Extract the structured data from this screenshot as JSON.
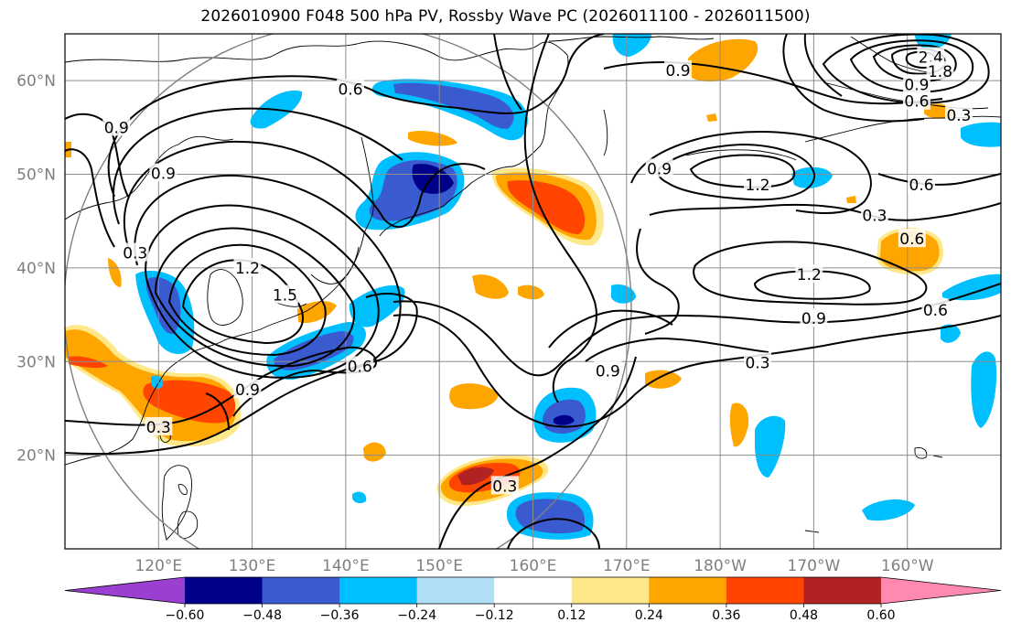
{
  "figure": {
    "title": "2026010900 F048 500 hPa PV, Rossby Wave PC (2026011100 - 2026011500)"
  },
  "axes": {
    "lat_labels": [
      "60°N",
      "50°N",
      "40°N",
      "30°N",
      "20°N"
    ],
    "lon_labels": [
      "120°E",
      "130°E",
      "140°E",
      "150°E",
      "160°E",
      "170°E",
      "180°W",
      "170°W",
      "160°W"
    ]
  },
  "colorbar": {
    "tick_labels": [
      "−0.60",
      "−0.48",
      "−0.36",
      "−0.24",
      "−0.12",
      "0.12",
      "0.24",
      "0.36",
      "0.48",
      "0.60"
    ],
    "colors": [
      "#9a3fd0",
      "#00008b",
      "#3a5bd0",
      "#00bfff",
      "#b0e0f8",
      "#ffffff",
      "#ffe88a",
      "#ffa500",
      "#ff4500",
      "#b22222",
      "#ff89b0"
    ]
  },
  "chart_data": {
    "type": "map",
    "title": "2026010900 F048 500 hPa PV, Rossby Wave PC (2026011100 - 2026011500)",
    "region": {
      "lon_min": 110,
      "lon_max": 210,
      "lat_min": 10,
      "lat_max": 65
    },
    "contour_levels": [
      0.3,
      0.6,
      0.9,
      1.2,
      1.5,
      1.8,
      2.4
    ],
    "contour_labels": [
      {
        "text": "0.6",
        "lon": 140.5,
        "lat": 59.1
      },
      {
        "text": "0.9",
        "lon": 175.5,
        "lat": 61.1
      },
      {
        "text": "0.9",
        "lon": 115.5,
        "lat": 55.0
      },
      {
        "text": "0.9",
        "lon": 120.5,
        "lat": 50.1
      },
      {
        "text": "0.9",
        "lon": 173.5,
        "lat": 50.6
      },
      {
        "text": "1.2",
        "lon": 184.0,
        "lat": 48.9
      },
      {
        "text": "0.3",
        "lon": 196.5,
        "lat": 45.6
      },
      {
        "text": "0.6",
        "lon": 201.5,
        "lat": 48.9
      },
      {
        "text": "0.6",
        "lon": 200.5,
        "lat": 43.1
      },
      {
        "text": "1.2",
        "lon": 129.5,
        "lat": 40.0
      },
      {
        "text": "1.5",
        "lon": 133.5,
        "lat": 37.1
      },
      {
        "text": "0.3",
        "lon": 117.5,
        "lat": 41.6
      },
      {
        "text": "1.2",
        "lon": 189.5,
        "lat": 39.3
      },
      {
        "text": "0.9",
        "lon": 190.0,
        "lat": 34.6
      },
      {
        "text": "0.6",
        "lon": 203.0,
        "lat": 35.5
      },
      {
        "text": "0.6",
        "lon": 141.5,
        "lat": 29.5
      },
      {
        "text": "0.3",
        "lon": 184.0,
        "lat": 29.9
      },
      {
        "text": "0.9",
        "lon": 168.0,
        "lat": 29.0
      },
      {
        "text": "0.9",
        "lon": 129.5,
        "lat": 27.0
      },
      {
        "text": "0.3",
        "lon": 120.0,
        "lat": 23.0
      },
      {
        "text": "0.3",
        "lon": 157.0,
        "lat": 16.7
      },
      {
        "text": "2.4",
        "lon": 202.5,
        "lat": 62.5
      },
      {
        "text": "1.8",
        "lon": 203.5,
        "lat": 61.0
      },
      {
        "text": "0.9",
        "lon": 201.0,
        "lat": 59.6
      },
      {
        "text": "0.6",
        "lon": 201.0,
        "lat": 57.8
      },
      {
        "text": "0.3",
        "lon": 205.5,
        "lat": 56.3
      }
    ],
    "anomalies": [
      {
        "sign": "positive",
        "max": 0.42,
        "lon": 161.0,
        "lat": 46.5
      },
      {
        "sign": "positive",
        "max": 0.4,
        "lon": 124.0,
        "lat": 26.0
      },
      {
        "sign": "positive",
        "max": 0.5,
        "lon": 155.0,
        "lat": 17.0
      },
      {
        "sign": "positive",
        "max": 0.3,
        "lon": 203.0,
        "lat": 41.0
      },
      {
        "sign": "positive",
        "max": 0.3,
        "lon": 182.0,
        "lat": 62.0
      },
      {
        "sign": "negative",
        "max": -0.52,
        "lon": 150.5,
        "lat": 49.5
      },
      {
        "sign": "negative",
        "max": -0.4,
        "lon": 163.0,
        "lat": 14.0
      },
      {
        "sign": "negative",
        "max": -0.52,
        "lon": 163.0,
        "lat": 23.5
      },
      {
        "sign": "negative",
        "max": -0.38,
        "lon": 149.0,
        "lat": 60.0
      },
      {
        "sign": "negative",
        "max": -0.4,
        "lon": 138.0,
        "lat": 31.0
      }
    ]
  }
}
